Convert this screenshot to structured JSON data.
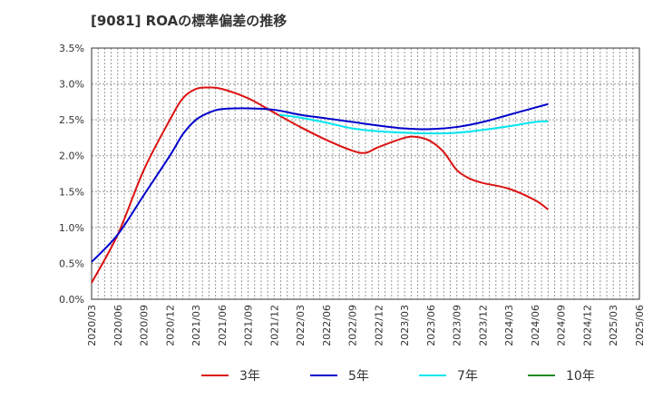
{
  "chart_data": {
    "type": "line",
    "title": "[9081]  ROAの標準偏差の推移",
    "xlabel": "",
    "ylabel": "",
    "ylim": [
      0,
      3.5
    ],
    "yticks": [
      "0.0%",
      "0.5%",
      "1.0%",
      "1.5%",
      "2.0%",
      "2.5%",
      "3.0%",
      "3.5%"
    ],
    "xticks": [
      "2020/03",
      "2020/06",
      "2020/09",
      "2020/12",
      "2021/03",
      "2021/06",
      "2021/09",
      "2021/12",
      "2022/03",
      "2022/06",
      "2022/09",
      "2022/12",
      "2023/03",
      "2023/06",
      "2023/09",
      "2023/12",
      "2024/03",
      "2024/06",
      "2024/09",
      "2024/12",
      "2025/03",
      "2025/06"
    ],
    "grid": true,
    "legend_position": "bottom",
    "series": [
      {
        "name": "3年",
        "color": "#dd1111",
        "points": [
          [
            0,
            0.23
          ],
          [
            1,
            0.9
          ],
          [
            2,
            1.8
          ],
          [
            3,
            2.5
          ],
          [
            3.5,
            2.8
          ],
          [
            4,
            2.93
          ],
          [
            4.5,
            2.95
          ],
          [
            5,
            2.93
          ],
          [
            6,
            2.8
          ],
          [
            7,
            2.6
          ],
          [
            8,
            2.4
          ],
          [
            9,
            2.22
          ],
          [
            10,
            2.07
          ],
          [
            10.5,
            2.04
          ],
          [
            11,
            2.12
          ],
          [
            12,
            2.25
          ],
          [
            12.5,
            2.26
          ],
          [
            13,
            2.2
          ],
          [
            13.5,
            2.05
          ],
          [
            14,
            1.8
          ],
          [
            14.5,
            1.68
          ],
          [
            15,
            1.62
          ],
          [
            16,
            1.54
          ],
          [
            17,
            1.38
          ],
          [
            17.5,
            1.25
          ]
        ]
      },
      {
        "name": "5年",
        "color": "#0000cc",
        "points": [
          [
            0,
            0.52
          ],
          [
            1,
            0.9
          ],
          [
            2,
            1.45
          ],
          [
            3,
            2.0
          ],
          [
            3.5,
            2.3
          ],
          [
            4,
            2.5
          ],
          [
            4.5,
            2.6
          ],
          [
            5,
            2.65
          ],
          [
            6,
            2.66
          ],
          [
            7,
            2.64
          ],
          [
            8,
            2.57
          ],
          [
            9,
            2.52
          ],
          [
            10,
            2.47
          ],
          [
            11,
            2.42
          ],
          [
            12,
            2.38
          ],
          [
            13,
            2.37
          ],
          [
            14,
            2.4
          ],
          [
            15,
            2.47
          ],
          [
            16,
            2.57
          ],
          [
            17,
            2.67
          ],
          [
            17.5,
            2.72
          ]
        ]
      },
      {
        "name": "7年",
        "color": "#00e5ee",
        "points": [
          [
            7.2,
            2.57
          ],
          [
            8,
            2.53
          ],
          [
            9,
            2.46
          ],
          [
            10,
            2.38
          ],
          [
            11,
            2.34
          ],
          [
            12,
            2.32
          ],
          [
            13,
            2.31
          ],
          [
            14,
            2.32
          ],
          [
            15,
            2.36
          ],
          [
            16,
            2.41
          ],
          [
            17,
            2.47
          ],
          [
            17.5,
            2.48
          ]
        ]
      },
      {
        "name": "10年",
        "color": "#228b22",
        "points": []
      }
    ]
  }
}
